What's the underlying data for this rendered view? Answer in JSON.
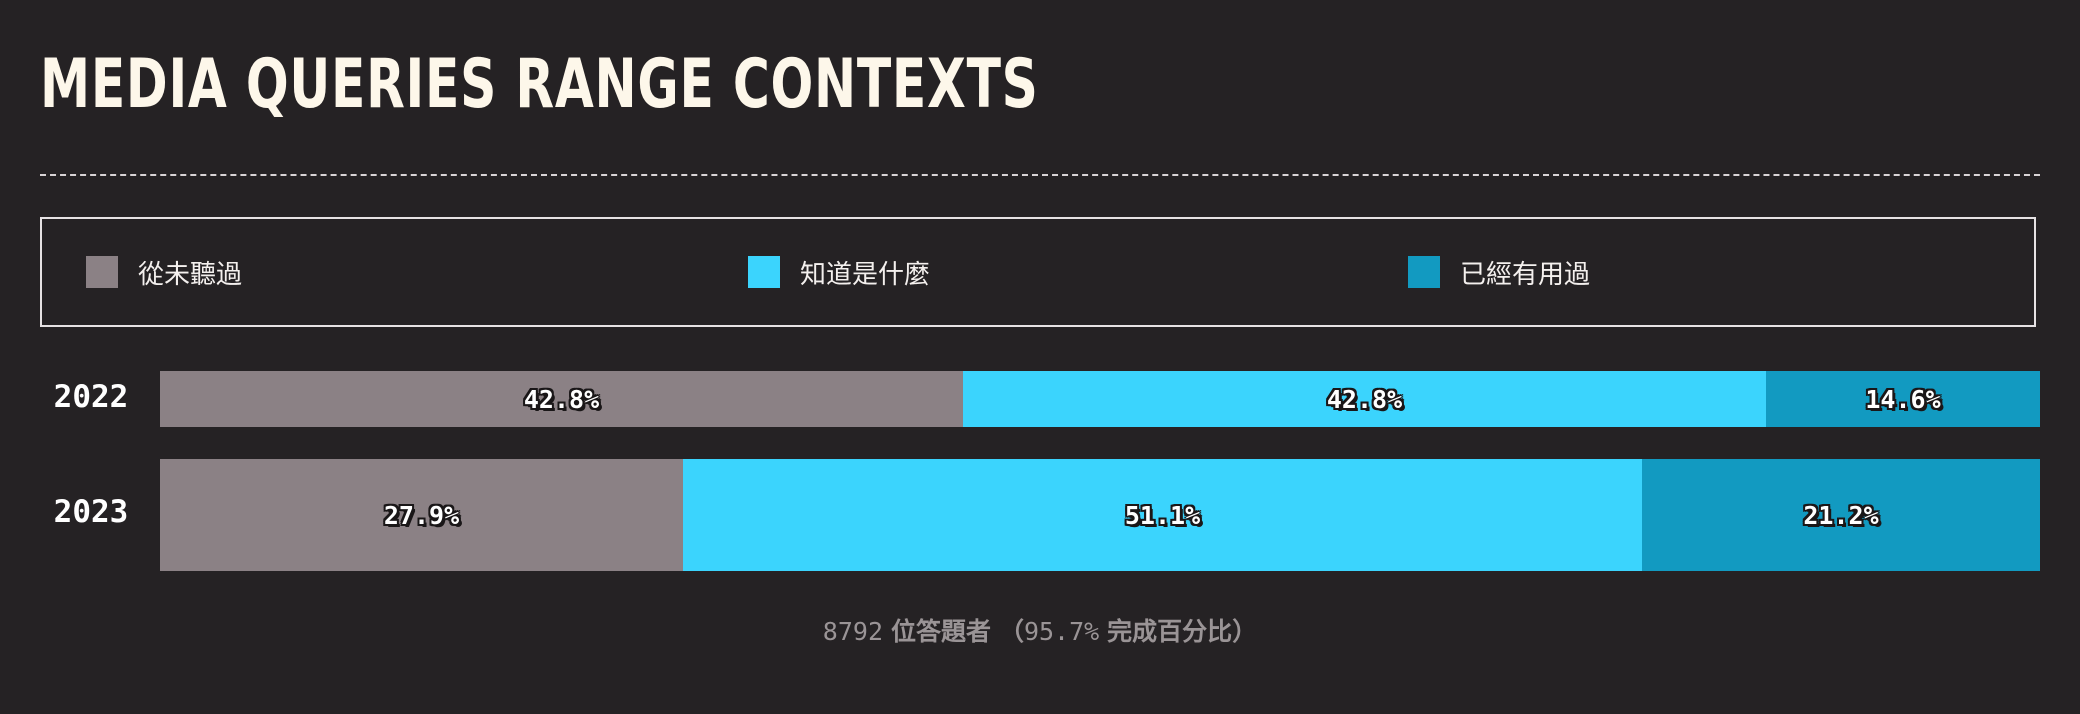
{
  "chart_data": {
    "type": "bar",
    "orientation": "horizontal-stacked-100",
    "title": "MEDIA QUERIES RANGE CONTEXTS",
    "categories": [
      "2022",
      "2023"
    ],
    "series": [
      {
        "name": "從未聽過",
        "color": "#8b8185",
        "values": [
          42.8,
          27.9
        ],
        "labels": [
          "42.8%",
          "27.9%"
        ]
      },
      {
        "name": "知道是什麼",
        "color": "#3bd4fd",
        "values": [
          42.8,
          51.1
        ],
        "labels": [
          "42.8%",
          "51.1%"
        ]
      },
      {
        "name": "已經有用過",
        "color": "#129ac1",
        "values": [
          14.6,
          21.2
        ],
        "labels": [
          "14.6%",
          "21.2%"
        ]
      }
    ],
    "xlim": [
      0,
      100
    ],
    "legend_position": "top",
    "footnote": {
      "respondents": "8792",
      "respondents_label": "位答題者",
      "open_paren": "（",
      "completion": "95.7%",
      "completion_label": "完成百分比",
      "close_paren": "）"
    }
  }
}
